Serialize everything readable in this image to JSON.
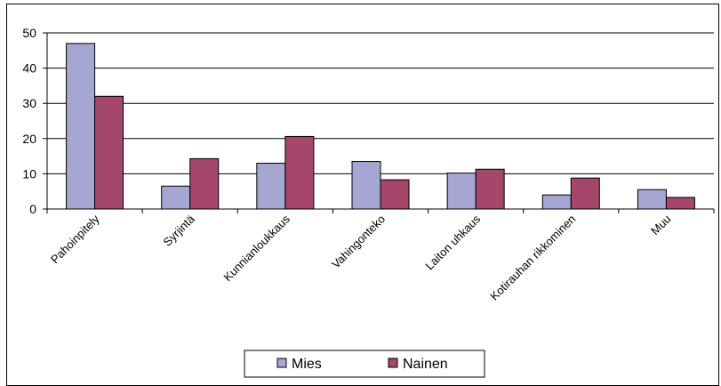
{
  "chart_data": {
    "type": "bar",
    "title": "",
    "xlabel": "",
    "ylabel": "",
    "ylim": [
      0,
      50
    ],
    "yticks": [
      0,
      10,
      20,
      30,
      40,
      50
    ],
    "grid": true,
    "legend_position": "bottom",
    "categories": [
      "Pahoinpitely",
      "Syrjintä",
      "Kunnianloukkaus",
      "Vahingonteko",
      "Laiton uhkaus",
      "Kotirauhan rikkominen",
      "Muu"
    ],
    "series": [
      {
        "name": "Mies",
        "color": "#a6a6d2",
        "values": [
          47,
          6.5,
          13,
          13.5,
          10.2,
          4,
          5.5
        ]
      },
      {
        "name": "Nainen",
        "color": "#a5466b",
        "values": [
          32,
          14.3,
          20.6,
          8.3,
          11.3,
          8.8,
          3.3
        ]
      }
    ]
  }
}
